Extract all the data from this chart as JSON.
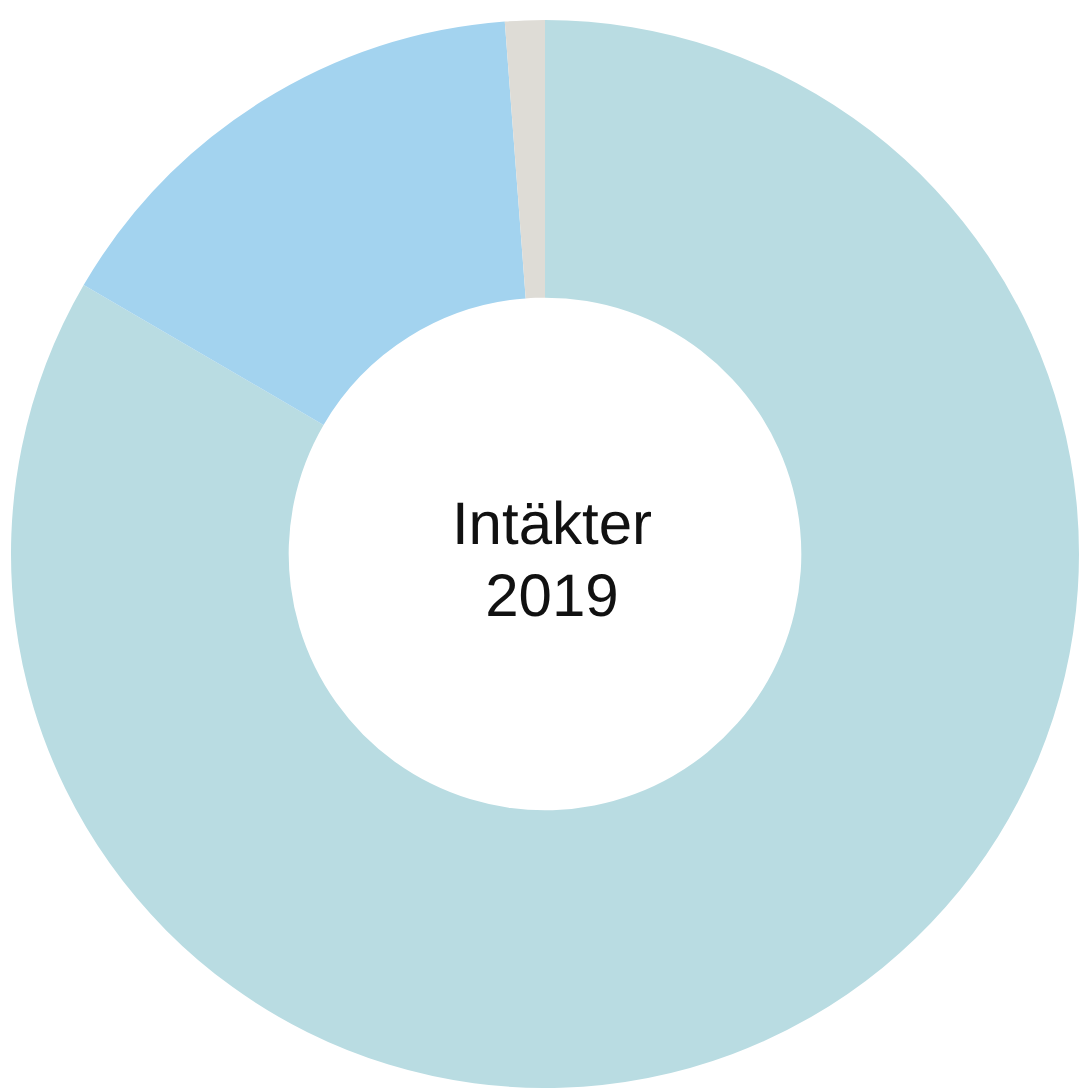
{
  "chart_data": {
    "type": "donut",
    "title": "Intäkter 2019",
    "categories": [
      null,
      null,
      null
    ],
    "values": [
      83.4,
      15.4,
      1.2
    ],
    "colors": [
      "#b9dce2",
      "#a3d3ef",
      "#dedcd6"
    ],
    "legend": false
  }
}
